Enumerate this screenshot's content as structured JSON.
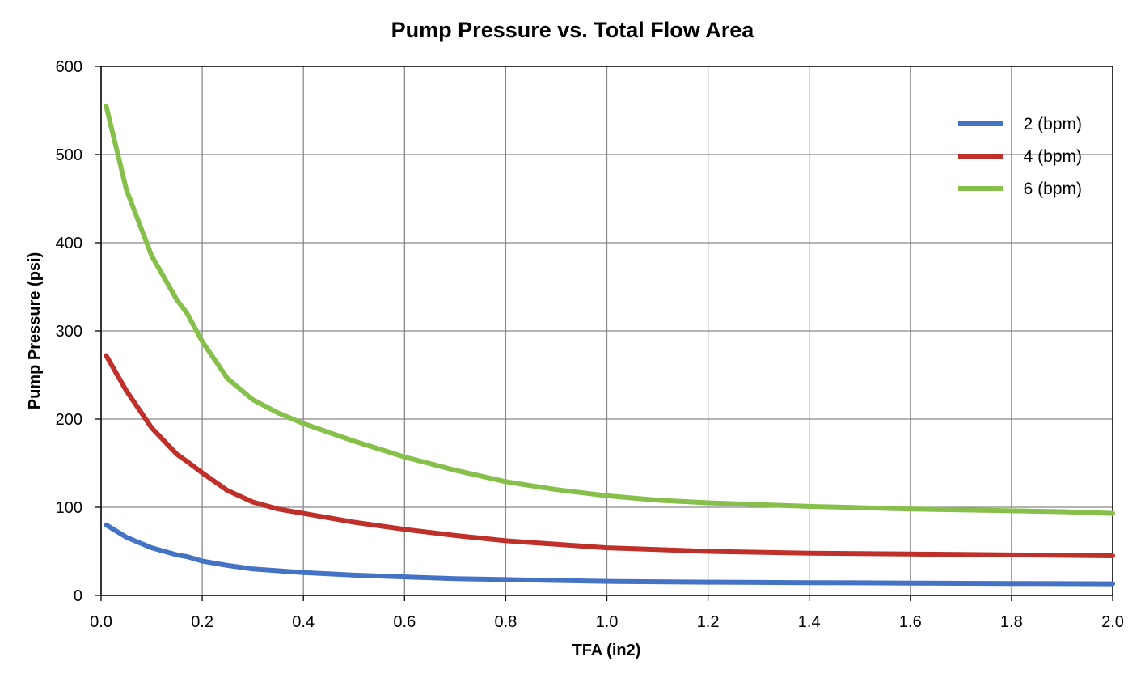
{
  "chart_data": {
    "type": "line",
    "title": "Pump Pressure vs. Total Flow Area",
    "xlabel": "TFA (in2)",
    "ylabel": "Pump Pressure (psi)",
    "xlim": [
      0,
      2.0
    ],
    "ylim": [
      0,
      600
    ],
    "x_ticks": [
      "0.0",
      "0.2",
      "0.4",
      "0.6",
      "0.8",
      "1.0",
      "1.2",
      "1.4",
      "1.6",
      "1.8",
      "2.0"
    ],
    "y_ticks": [
      "0",
      "100",
      "200",
      "300",
      "400",
      "500",
      "600"
    ],
    "grid": true,
    "legend_position": "top-right",
    "x": [
      0.01,
      0.05,
      0.1,
      0.15,
      0.17,
      0.2,
      0.25,
      0.3,
      0.35,
      0.4,
      0.5,
      0.6,
      0.7,
      0.8,
      0.9,
      1.0,
      1.1,
      1.2,
      1.3,
      1.4,
      1.5,
      1.6,
      1.7,
      1.8,
      1.9,
      2.0
    ],
    "series": [
      {
        "name": "2 (bpm)",
        "color": "#4472c4",
        "values": [
          80,
          66,
          54,
          46,
          44,
          39,
          34,
          30,
          28,
          26,
          23,
          21,
          19,
          18,
          17,
          16,
          15.5,
          15,
          14.8,
          14.5,
          14.3,
          14,
          13.8,
          13.6,
          13.4,
          13.2
        ]
      },
      {
        "name": "4 (bpm)",
        "color": "#c0302b",
        "values": [
          272,
          232,
          190,
          160,
          152,
          139,
          119,
          106,
          98,
          93,
          83,
          75,
          68,
          62,
          58,
          54,
          52,
          50,
          49,
          48,
          47.5,
          47,
          46.5,
          46,
          45.5,
          45
        ]
      },
      {
        "name": "6 (bpm)",
        "color": "#86c04a",
        "values": [
          555,
          460,
          385,
          335,
          320,
          288,
          246,
          222,
          207,
          195,
          175,
          157,
          142,
          129,
          120,
          113,
          108,
          105,
          103,
          101,
          99.5,
          98,
          97,
          96,
          95,
          93
        ]
      }
    ]
  }
}
